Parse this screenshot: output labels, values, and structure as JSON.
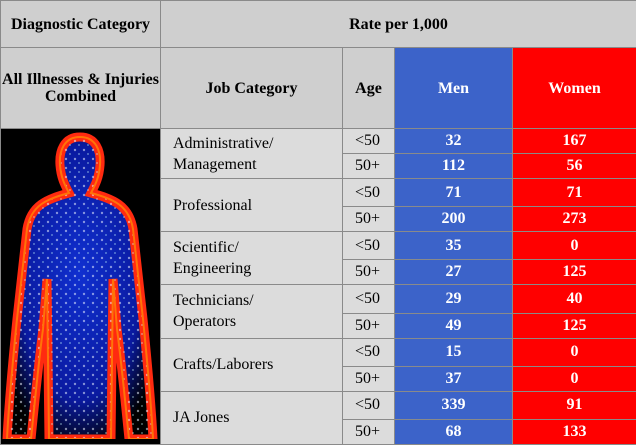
{
  "table": {
    "header1": [
      "Diagnostic Category",
      "Rate per 1,000"
    ],
    "header2": [
      "All Illnesses & Injuries Combined",
      "Job Category",
      "Age",
      "Men",
      "Women"
    ],
    "groups": [
      {
        "job": [
          "Administrative/",
          "Management"
        ],
        "rows": [
          [
            "<50",
            32,
            167
          ],
          [
            "50+",
            112,
            56
          ]
        ]
      },
      {
        "job": [
          "Professional"
        ],
        "rows": [
          [
            "<50",
            71,
            71
          ],
          [
            "50+",
            200,
            273
          ]
        ]
      },
      {
        "job": [
          "Scientific/",
          "Engineering"
        ],
        "rows": [
          [
            "<50",
            35,
            0
          ],
          [
            "50+",
            27,
            125
          ]
        ]
      },
      {
        "job": [
          "Technicians/",
          "Operators"
        ],
        "rows": [
          [
            "<50",
            29,
            40
          ],
          [
            "50+",
            49,
            125
          ]
        ]
      },
      {
        "job": [
          "Crafts/Laborers"
        ],
        "rows": [
          [
            "<50",
            15,
            0
          ],
          [
            "50+",
            37,
            0
          ]
        ]
      },
      {
        "job": [
          "JA Jones"
        ],
        "rows": [
          [
            "<50",
            339,
            91
          ],
          [
            "50+",
            68,
            133
          ]
        ]
      }
    ]
  }
}
